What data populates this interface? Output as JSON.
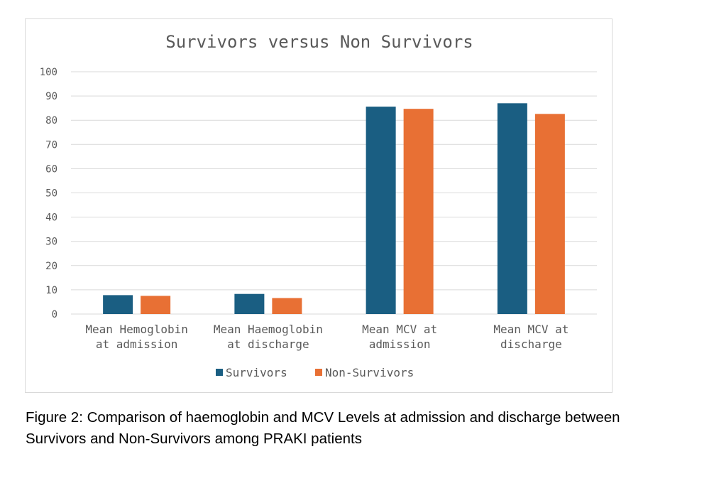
{
  "chart_data": {
    "type": "bar",
    "title": "Survivors versus Non Survivors",
    "categories": [
      [
        "Mean Hemoglobin",
        "at admission"
      ],
      [
        "Mean Haemoglobin",
        "at discharge"
      ],
      [
        "Mean MCV at",
        "admission"
      ],
      [
        "Mean MCV at",
        "discharge"
      ]
    ],
    "series": [
      {
        "name": "Survivors",
        "color": "#1a5e82",
        "values": [
          7.8,
          8.3,
          85.6,
          87.0
        ]
      },
      {
        "name": "Non-Survivors",
        "color": "#e87034",
        "values": [
          7.5,
          6.6,
          84.7,
          82.6
        ]
      }
    ],
    "ylim": [
      0,
      100
    ],
    "yticks": [
      0,
      10,
      20,
      30,
      40,
      50,
      60,
      70,
      80,
      90,
      100
    ],
    "grid": true,
    "legend_position": "bottom"
  },
  "caption": {
    "line1": "Figure 2: Comparison of haemoglobin and MCV Levels at admission and discharge between",
    "line2": "Survivors and Non-Survivors among PRAKI patients"
  }
}
